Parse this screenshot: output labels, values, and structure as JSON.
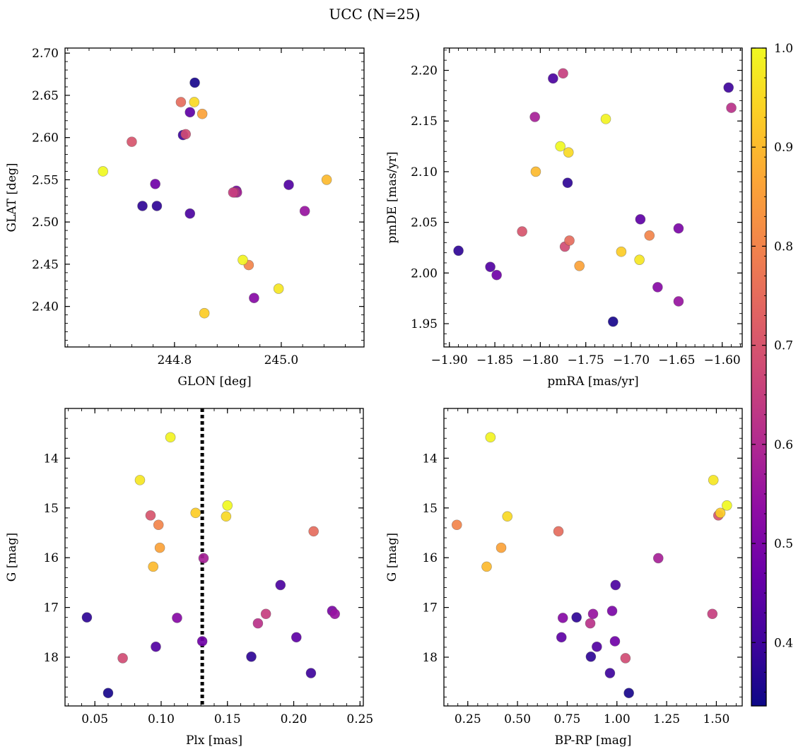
{
  "title": "UCC (N=25)",
  "colorbar": {
    "min": 0.336,
    "max": 1.0,
    "ticks": [
      0.4,
      0.5,
      0.6,
      0.7,
      0.8,
      0.9,
      1.0
    ],
    "tick_labels": [
      "0.4",
      "0.5",
      "0.6",
      "0.7",
      "0.8",
      "0.9",
      "1.0"
    ],
    "colormap": "plasma"
  },
  "probabilities": [
    0.35,
    0.38,
    0.38,
    0.4,
    0.42,
    0.43,
    0.45,
    0.48,
    0.5,
    0.52,
    0.55,
    0.58,
    0.62,
    0.65,
    0.68,
    0.7,
    0.75,
    0.8,
    0.86,
    0.9,
    0.93,
    0.95,
    0.97,
    0.99,
    1.0
  ],
  "chart_data": [
    {
      "type": "scatter",
      "xlabel": "GLON [deg]",
      "ylabel": "GLAT [deg]",
      "xlim": [
        244.595,
        245.155
      ],
      "ylim": [
        2.352,
        2.706
      ],
      "xticks": [
        244.8,
        245.0
      ],
      "xtick_labels": [
        "244.8",
        "245.0"
      ],
      "yticks": [
        2.4,
        2.45,
        2.5,
        2.55,
        2.6,
        2.65,
        2.7
      ],
      "ytick_labels": [
        "2.40",
        "2.45",
        "2.50",
        "2.55",
        "2.60",
        "2.65",
        "2.70"
      ],
      "x": [
        244.838,
        244.74,
        244.767,
        244.816,
        244.829,
        245.014,
        244.829,
        244.764,
        244.916,
        244.949,
        245.044,
        244.917,
        244.913,
        244.91,
        244.821,
        244.72,
        244.812,
        244.939,
        244.852,
        245.085,
        244.856,
        244.837,
        244.995,
        244.928,
        244.666
      ],
      "y": [
        2.665,
        2.519,
        2.519,
        2.603,
        2.51,
        2.544,
        2.63,
        2.545,
        2.537,
        2.41,
        2.513,
        2.535,
        2.535,
        2.535,
        2.604,
        2.595,
        2.642,
        2.449,
        2.628,
        2.55,
        2.392,
        2.642,
        2.421,
        2.455,
        2.56
      ]
    },
    {
      "type": "scatter",
      "xlabel": "pmRA [mas/yr]",
      "ylabel": "pmDE [mas/yr]",
      "xlim": [
        -1.906,
        -1.578
      ],
      "ylim": [
        1.927,
        2.222
      ],
      "xticks": [
        -1.9,
        -1.85,
        -1.8,
        -1.75,
        -1.7,
        -1.65,
        -1.6
      ],
      "xtick_labels": [
        "−1.90",
        "−1.85",
        "−1.80",
        "−1.75",
        "−1.70",
        "−1.65",
        "−1.60"
      ],
      "yticks": [
        1.95,
        2.0,
        2.05,
        2.1,
        2.15,
        2.2
      ],
      "ytick_labels": [
        "1.95",
        "2.00",
        "2.05",
        "2.10",
        "2.15",
        "2.20"
      ],
      "x": [
        -1.72,
        -1.77,
        -1.89,
        -1.593,
        -1.786,
        -1.855,
        -1.69,
        -1.848,
        -1.648,
        -1.671,
        -1.648,
        -1.806,
        -1.59,
        -1.775,
        -1.773,
        -1.82,
        -1.768,
        -1.68,
        -1.757,
        -1.805,
        -1.711,
        -1.769,
        -1.691,
        -1.728,
        -1.778
      ],
      "y": [
        1.952,
        2.089,
        2.022,
        2.183,
        2.192,
        2.006,
        2.053,
        1.998,
        2.044,
        1.986,
        1.972,
        2.154,
        2.163,
        2.197,
        2.026,
        2.041,
        2.032,
        2.037,
        2.007,
        2.1,
        2.021,
        2.119,
        2.013,
        2.152,
        2.125
      ]
    },
    {
      "type": "scatter",
      "xlabel": "Plx [mas]",
      "ylabel": "G [mag]",
      "xlim": [
        0.0275,
        0.2525
      ],
      "ylim": [
        18.98,
        13.0
      ],
      "y_inverted": true,
      "xticks": [
        0.05,
        0.1,
        0.15,
        0.2,
        0.25
      ],
      "xtick_labels": [
        "0.05",
        "0.10",
        "0.15",
        "0.20",
        "0.25"
      ],
      "yticks": [
        14,
        15,
        16,
        17,
        18
      ],
      "ytick_labels": [
        "14",
        "15",
        "16",
        "17",
        "18"
      ],
      "vline_x": 0.131,
      "x": [
        0.06,
        0.044,
        0.168,
        0.213,
        0.19,
        0.096,
        0.202,
        0.131,
        0.229,
        0.112,
        0.231,
        0.132,
        0.173,
        0.179,
        0.071,
        0.092,
        0.215,
        0.098,
        0.099,
        0.094,
        0.126,
        0.149,
        0.084,
        0.107,
        0.15
      ],
      "y": [
        18.72,
        17.2,
        17.99,
        18.32,
        16.55,
        17.79,
        17.6,
        17.68,
        17.07,
        17.21,
        17.13,
        16.01,
        17.32,
        17.13,
        18.02,
        15.15,
        15.47,
        15.34,
        15.8,
        16.18,
        15.1,
        15.17,
        14.44,
        13.58,
        14.95
      ]
    },
    {
      "type": "scatter",
      "xlabel": "BP-RP [mag]",
      "ylabel": "G [mag]",
      "xlim": [
        0.13,
        1.63
      ],
      "ylim": [
        18.98,
        13.0
      ],
      "y_inverted": true,
      "xticks": [
        0.25,
        0.5,
        0.75,
        1.0,
        1.25,
        1.5
      ],
      "xtick_labels": [
        "0.25",
        "0.50",
        "0.75",
        "1.00",
        "1.25",
        "1.50"
      ],
      "yticks": [
        14,
        15,
        16,
        17,
        18
      ],
      "ytick_labels": [
        "14",
        "15",
        "16",
        "17",
        "18"
      ],
      "x": [
        1.06,
        0.797,
        0.869,
        0.965,
        0.993,
        0.899,
        0.721,
        0.99,
        0.976,
        0.728,
        0.88,
        1.208,
        0.866,
        1.48,
        1.043,
        1.51,
        0.706,
        0.195,
        0.418,
        0.345,
        1.52,
        0.449,
        1.485,
        0.364,
        1.553
      ],
      "y": [
        18.72,
        17.2,
        17.99,
        18.32,
        16.55,
        17.79,
        17.6,
        17.68,
        17.07,
        17.21,
        17.13,
        16.01,
        17.32,
        17.13,
        18.02,
        15.15,
        15.47,
        15.34,
        15.8,
        16.18,
        15.1,
        15.17,
        14.44,
        13.58,
        14.95
      ]
    }
  ]
}
